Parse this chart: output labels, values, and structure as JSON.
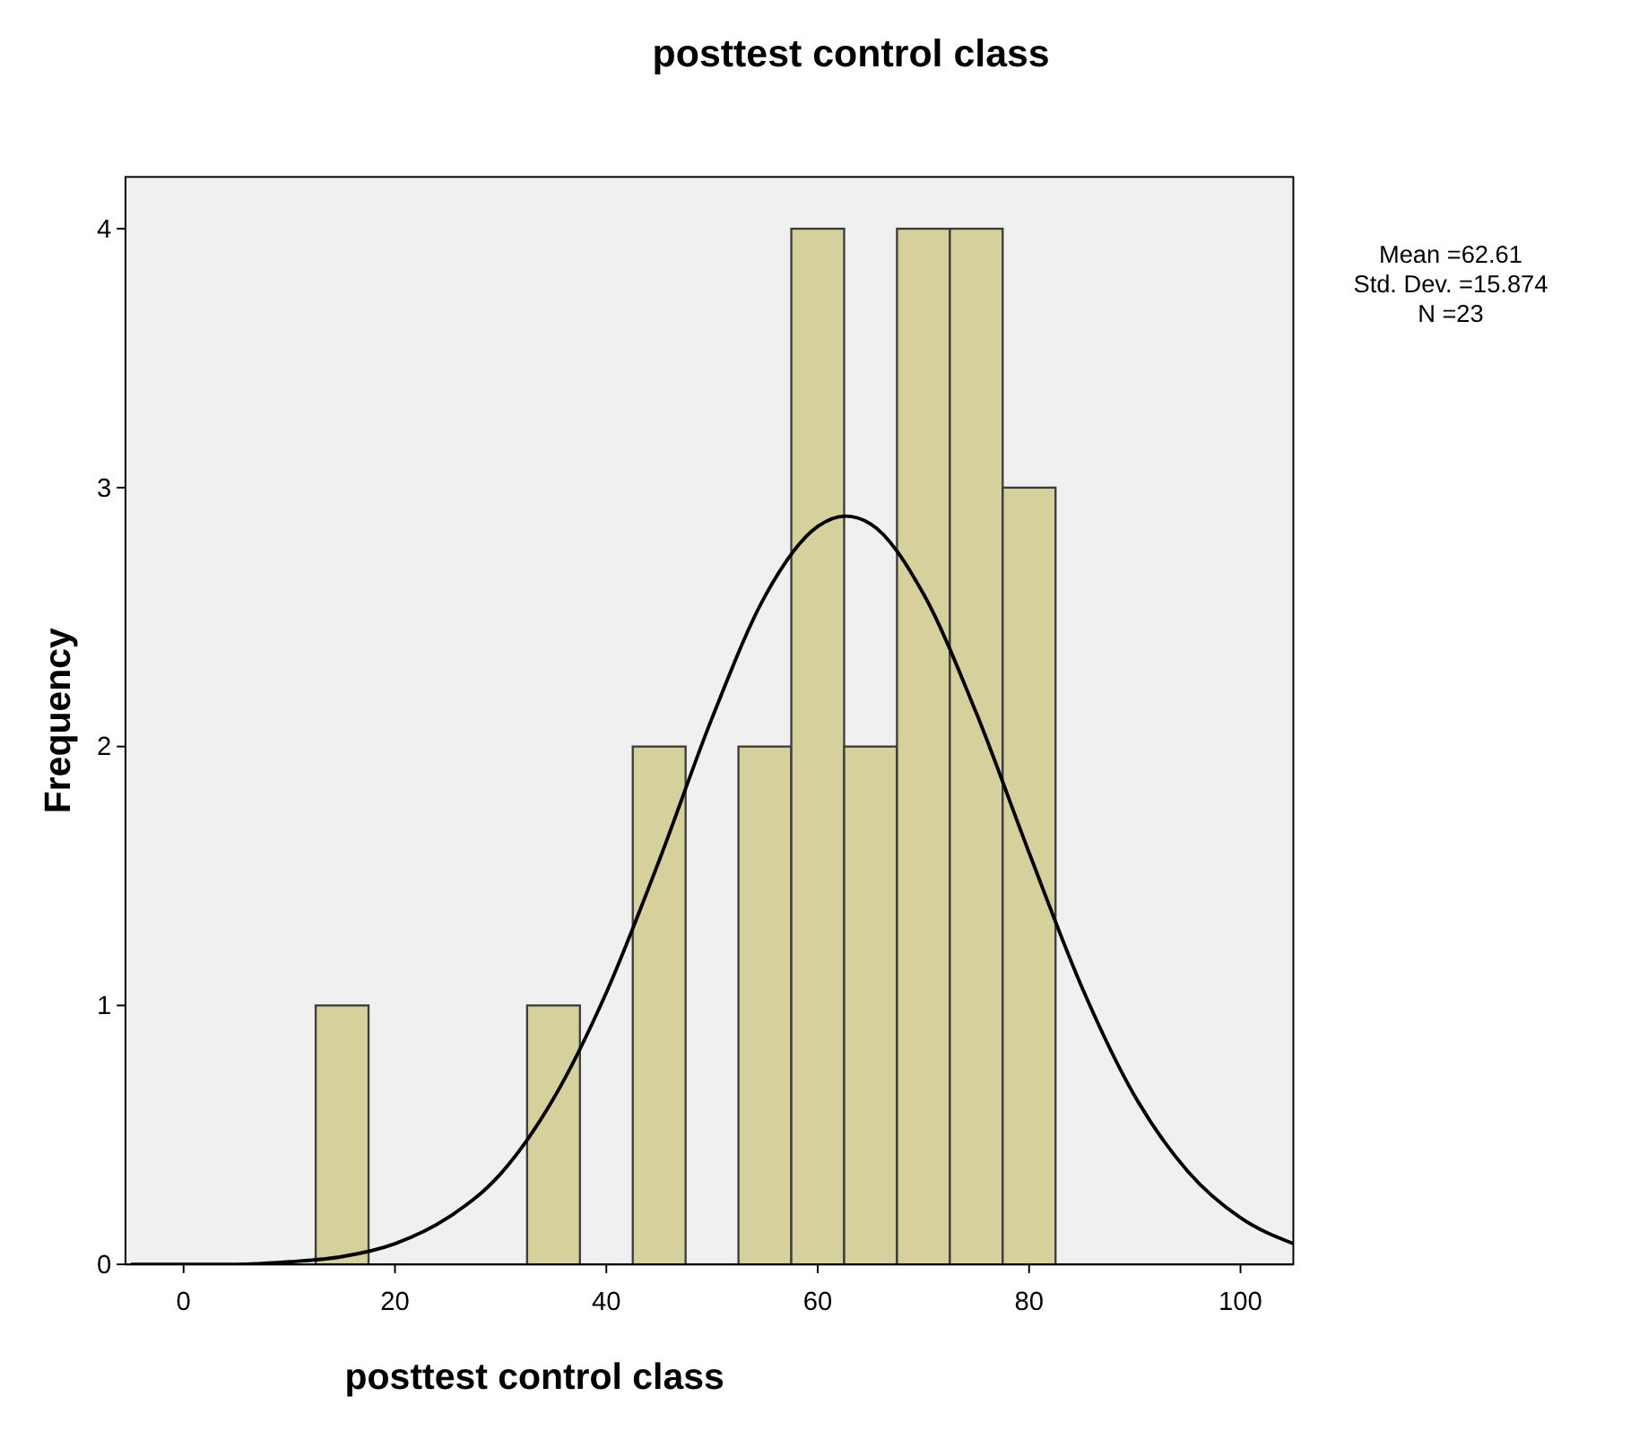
{
  "chart_data": {
    "type": "histogram",
    "title": "posttest control class",
    "xlabel": "posttest control class",
    "ylabel": "Frequency",
    "xlim": [
      -5.5,
      105
    ],
    "xticks": [
      0,
      20,
      40,
      60,
      80,
      100
    ],
    "ylim": [
      0,
      4.2
    ],
    "yticks": [
      0,
      1,
      2,
      3,
      4
    ],
    "grid": false,
    "series": [
      {
        "color": "#d6d19c",
        "bins": [
          12.5,
          17.5,
          22.5,
          27.5,
          32.5,
          37.5,
          42.5,
          47.5,
          52.5,
          57.5,
          62.5,
          67.5,
          72.5,
          77.5,
          82.5
        ],
        "values": [
          1,
          0,
          0,
          0,
          1,
          0,
          2,
          0,
          2,
          4,
          2,
          4,
          4,
          3
        ]
      },
      {
        "type": "line",
        "color": "#000000",
        "x": [
          -5,
          0,
          5,
          10,
          15,
          20,
          25,
          30,
          35,
          40,
          45,
          50,
          55,
          60,
          62.61,
          65,
          70,
          75,
          80,
          85,
          90,
          95,
          100,
          105
        ],
        "values": [
          0,
          0,
          0,
          0.01,
          0.03,
          0.08,
          0.18,
          0.35,
          0.64,
          1.05,
          1.56,
          2.11,
          2.58,
          2.85,
          2.89,
          2.86,
          2.59,
          2.13,
          1.59,
          1.07,
          0.65,
          0.36,
          0.18,
          0.08
        ]
      }
    ],
    "annotations": [
      "Mean =62.61",
      "Std. Dev. =15.874",
      "N =23"
    ]
  }
}
